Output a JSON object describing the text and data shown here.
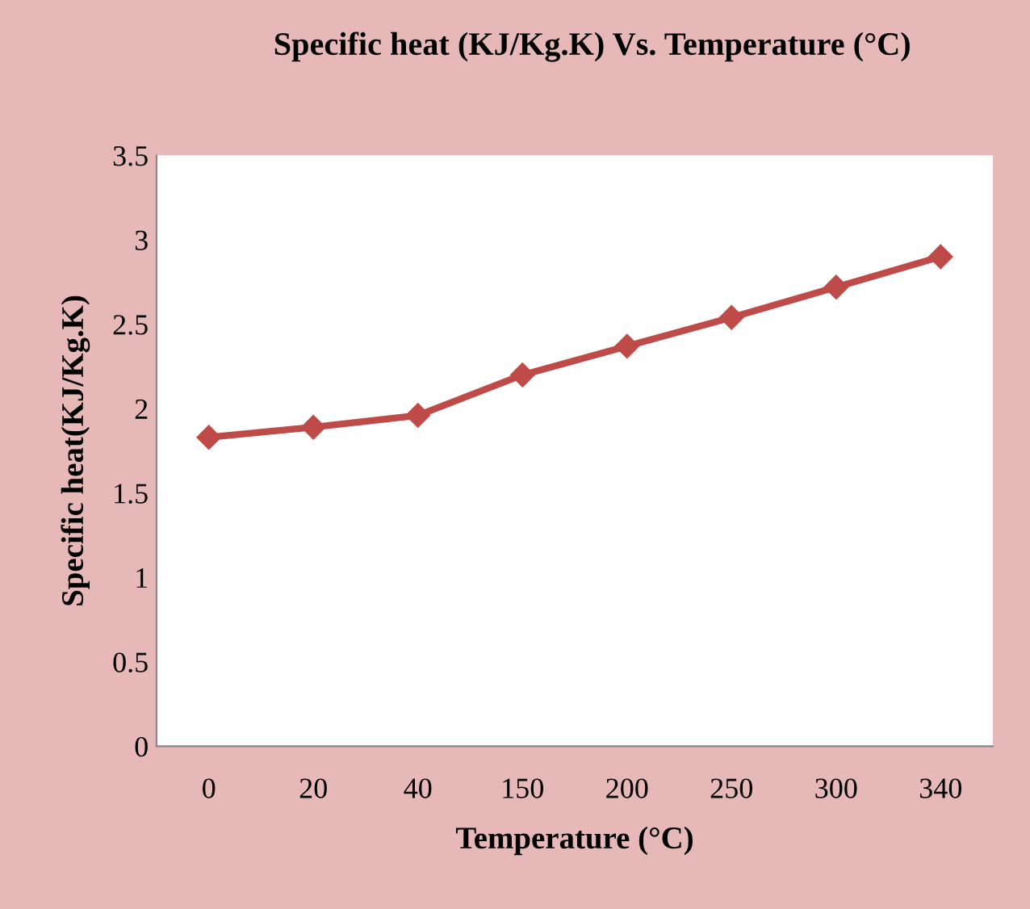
{
  "chart_data": {
    "type": "line",
    "title": "Specific heat (KJ/Kg.K) Vs. Temperature (°C)",
    "xlabel": "Temperature (°C)",
    "ylabel": "Specific heat(KJ/Kg.K)",
    "categories": [
      "0",
      "20",
      "40",
      "150",
      "200",
      "250",
      "300",
      "340"
    ],
    "series": [
      {
        "color": "#be4b48",
        "values": [
          1.83,
          1.89,
          1.96,
          2.2,
          2.37,
          2.54,
          2.72,
          2.9
        ]
      }
    ],
    "ylim": [
      0,
      3.5
    ],
    "yticks": [
      0,
      0.5,
      1,
      1.5,
      2,
      2.5,
      3,
      3.5
    ],
    "marker": "diamond",
    "line_style": "solid",
    "grid": false,
    "legend": false
  }
}
